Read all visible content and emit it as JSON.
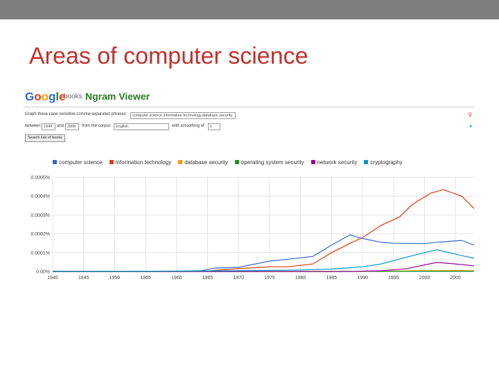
{
  "slide": {
    "title": "Areas of computer science"
  },
  "screenshot": {
    "logo_letters": [
      "G",
      "o",
      "o",
      "g",
      "l",
      "e"
    ],
    "books_label": "books",
    "viewer_title": "Ngram Viewer",
    "graph_label": "Graph these case-sensitive comma-separated phrases:",
    "phrases": "computer science,information technology,database security",
    "between_label": "between",
    "year_from": "1940",
    "and_label": "and",
    "year_to": "2008",
    "corpus_label": "from the corpus",
    "corpus": "English",
    "smoothing_label": "with smoothing of",
    "smoothing": "1",
    "search_button": "Search lots of books",
    "colors": {
      "accent_title": "#c0312b",
      "top_bar": "#7f7f7f"
    }
  },
  "chart_data": {
    "type": "line",
    "title": "",
    "xlabel": "",
    "ylabel": "",
    "xlim": [
      1940,
      2008
    ],
    "ylim": [
      0,
      0.0005
    ],
    "x_ticks": [
      "1940",
      "1945",
      "1950",
      "1955",
      "1960",
      "1965",
      "1970",
      "1975",
      "1980",
      "1985",
      "1990",
      "1995",
      "2000",
      "2005"
    ],
    "y_ticks": [
      "0.00%",
      "0.0001%",
      "0.0002%",
      "0.0003%",
      "0.0004%",
      "0.0005%"
    ],
    "legend_position": "top",
    "grid": true,
    "series": [
      {
        "name": "computer science",
        "color": "#3366cc",
        "points": [
          [
            1940,
            2e-06
          ],
          [
            1945,
            1e-06
          ],
          [
            1950,
            1e-06
          ],
          [
            1955,
            1e-06
          ],
          [
            1960,
            2e-06
          ],
          [
            1964,
            4e-06
          ],
          [
            1966,
            1.8e-05
          ],
          [
            1970,
            2.2e-05
          ],
          [
            1975,
            5.5e-05
          ],
          [
            1978,
            6.5e-05
          ],
          [
            1982,
            8e-05
          ],
          [
            1985,
            0.00014
          ],
          [
            1988,
            0.000195
          ],
          [
            1990,
            0.000175
          ],
          [
            1993,
            0.000155
          ],
          [
            1995,
            0.00015
          ],
          [
            2000,
            0.000148
          ],
          [
            2002,
            0.000155
          ],
          [
            2004,
            0.00016
          ],
          [
            2006,
            0.000165
          ],
          [
            2008,
            0.00014
          ]
        ]
      },
      {
        "name": "information technology",
        "color": "#dc3912",
        "points": [
          [
            1940,
            0.0
          ],
          [
            1960,
            0.0
          ],
          [
            1965,
            3e-06
          ],
          [
            1970,
            1.5e-05
          ],
          [
            1975,
            2.5e-05
          ],
          [
            1978,
            2.5e-05
          ],
          [
            1982,
            4e-05
          ],
          [
            1985,
            0.0001
          ],
          [
            1988,
            0.00015
          ],
          [
            1990,
            0.00018
          ],
          [
            1993,
            0.000245
          ],
          [
            1996,
            0.00029
          ],
          [
            1998,
            0.000355
          ],
          [
            2001,
            0.000415
          ],
          [
            2003,
            0.000435
          ],
          [
            2006,
            0.0004
          ],
          [
            2008,
            0.000335
          ]
        ]
      },
      {
        "name": "database security",
        "color": "#ff9900",
        "points": [
          [
            1940,
            0.0
          ],
          [
            1985,
            0.0
          ],
          [
            1995,
            2e-06
          ],
          [
            2000,
            4e-06
          ],
          [
            2005,
            5e-06
          ],
          [
            2008,
            4e-06
          ]
        ]
      },
      {
        "name": "operating system security",
        "color": "#109618",
        "points": [
          [
            1940,
            0.0
          ],
          [
            1985,
            0.0
          ],
          [
            1995,
            1e-06
          ],
          [
            2000,
            2e-06
          ],
          [
            2005,
            2e-06
          ],
          [
            2008,
            2e-06
          ]
        ]
      },
      {
        "name": "network security",
        "color": "#990099",
        "points": [
          [
            1940,
            0.0
          ],
          [
            1988,
            0.0
          ],
          [
            1993,
            4e-06
          ],
          [
            1997,
            1.4e-05
          ],
          [
            2000,
            3.5e-05
          ],
          [
            2002,
            4.8e-05
          ],
          [
            2005,
            4e-05
          ],
          [
            2008,
            3e-05
          ]
        ]
      },
      {
        "name": "cryptography",
        "color": "#0099c6",
        "points": [
          [
            1940,
            0.0
          ],
          [
            1960,
            2e-06
          ],
          [
            1970,
            4e-06
          ],
          [
            1975,
            6e-06
          ],
          [
            1980,
            8e-06
          ],
          [
            1985,
            1.3e-05
          ],
          [
            1990,
            2.5e-05
          ],
          [
            1993,
            4e-05
          ],
          [
            1997,
            7.5e-05
          ],
          [
            2000,
            0.0001
          ],
          [
            2002,
            0.000115
          ],
          [
            2004,
            0.0001
          ],
          [
            2006,
            8.5e-05
          ],
          [
            2008,
            7e-05
          ]
        ]
      }
    ]
  }
}
